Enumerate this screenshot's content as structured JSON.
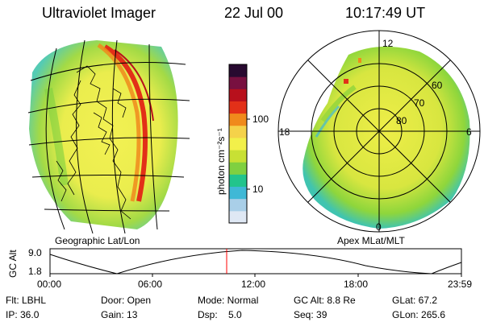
{
  "header": {
    "app_title": "Ultraviolet Imager",
    "date": "22 Jul 00",
    "time": "10:17:49 UT"
  },
  "left_panel": {
    "caption": "Geographic Lat/Lon"
  },
  "right_panel": {
    "caption": "Apex MLat/MLT",
    "lat_labels": [
      "60",
      "70",
      "80"
    ],
    "mlt_labels": {
      "top": "12",
      "left": "18",
      "right": "6",
      "bottom": "0"
    }
  },
  "colorbar": {
    "unit_label": "photon cm⁻²s⁻¹",
    "tick_labels": [
      "100",
      "10"
    ],
    "colors": [
      "#dfe8f4",
      "#a9cfe8",
      "#3fb8d6",
      "#22c48c",
      "#7fd040",
      "#c8e034",
      "#f2f04a",
      "#f5d24a",
      "#f08a1c",
      "#e23018",
      "#b8101c",
      "#781040",
      "#280a30"
    ]
  },
  "timeline": {
    "axis_label": "GC Alt",
    "y_tick_labels": [
      "9.0",
      "1.8"
    ],
    "x_tick_labels": [
      "00:00",
      "06:00",
      "12:00",
      "18:00",
      "23:59"
    ],
    "current_time": "10:17:49",
    "marker_color": "#ff0000"
  },
  "status": {
    "flt": "Flt: LBHL",
    "door": "Door: Open",
    "mode": "Mode: Normal",
    "gc_alt": "GC Alt: 8.8 Re",
    "glat": "GLat: 67.2",
    "ip": "IP: 36.0",
    "gain": "Gain: 13",
    "dsp": "Dsp:    5.0",
    "seq": "Seq: 39",
    "glon": "GLon: 265.6"
  }
}
